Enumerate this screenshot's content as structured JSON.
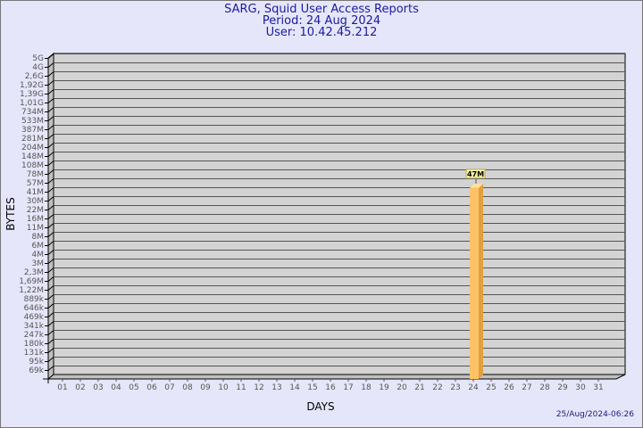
{
  "header": {
    "title": "SARG, Squid User Access Reports",
    "period": "Period: 24 Aug 2024",
    "user": "User: 10.42.45.212"
  },
  "timestamp": "25/Aug/2024-06:26",
  "colors": {
    "bar": "#ffc266",
    "bar_side": "#e0a040",
    "plot_bg": "#d3d3d3",
    "title": "#1a1aa0"
  },
  "chart_data": {
    "type": "bar",
    "xlabel": "DAYS",
    "ylabel": "BYTES",
    "categories": [
      "01",
      "02",
      "03",
      "04",
      "05",
      "06",
      "07",
      "08",
      "09",
      "10",
      "11",
      "12",
      "13",
      "14",
      "15",
      "16",
      "17",
      "18",
      "19",
      "20",
      "21",
      "22",
      "23",
      "24",
      "25",
      "26",
      "27",
      "28",
      "29",
      "30",
      "31"
    ],
    "y_ticks": [
      "5G",
      "4G",
      "2,6G",
      "1,92G",
      "1,39G",
      "1,01G",
      "734M",
      "533M",
      "387M",
      "281M",
      "204M",
      "148M",
      "108M",
      "78M",
      "57M",
      "41M",
      "30M",
      "22M",
      "16M",
      "11M",
      "8M",
      "6M",
      "4M",
      "3M",
      "2,3M",
      "1,69M",
      "1,22M",
      "889k",
      "646k",
      "469k",
      "341k",
      "247k",
      "180k",
      "131k",
      "95k",
      "69k"
    ],
    "y_scale": "log",
    "grid": true,
    "values": [
      null,
      null,
      null,
      null,
      null,
      null,
      null,
      null,
      null,
      null,
      null,
      null,
      null,
      null,
      null,
      null,
      null,
      null,
      null,
      null,
      null,
      null,
      null,
      "47M",
      null,
      null,
      null,
      null,
      null,
      null,
      null
    ],
    "value_levels": [
      null,
      null,
      null,
      null,
      null,
      null,
      null,
      null,
      null,
      null,
      null,
      null,
      null,
      null,
      null,
      null,
      null,
      null,
      null,
      null,
      null,
      null,
      null,
      47,
      null,
      null,
      null,
      null,
      null,
      null,
      null
    ],
    "data_labels": {
      "24": "47M"
    }
  }
}
